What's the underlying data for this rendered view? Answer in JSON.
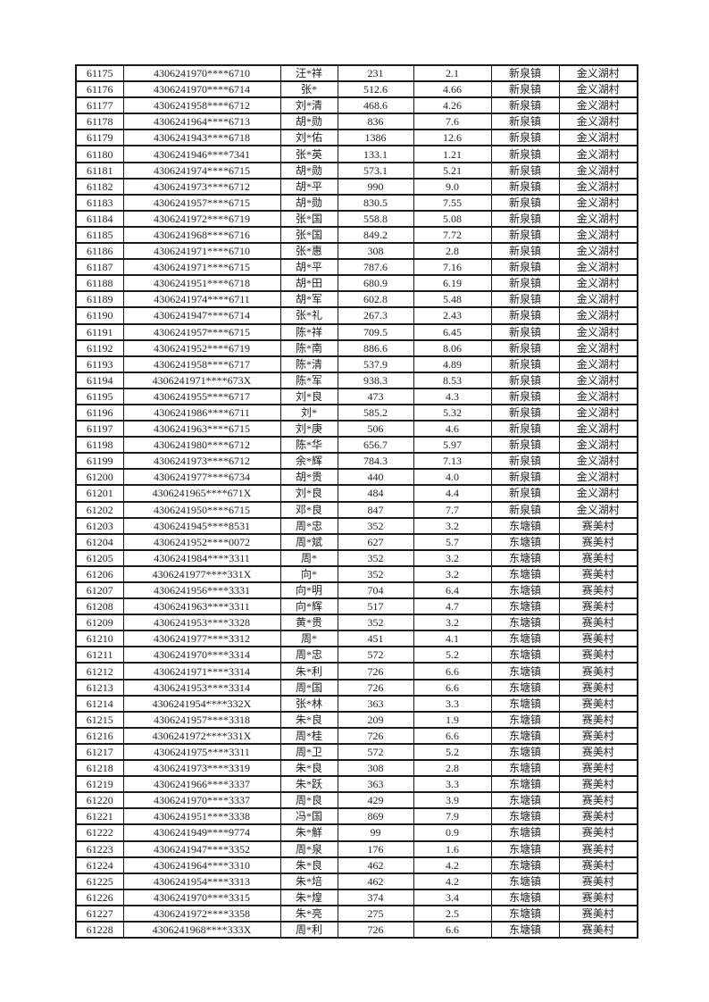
{
  "colors": {
    "page_background": "#ffffff",
    "grid_border": "#1a1a1a",
    "text": "#1f1f1f"
  },
  "table": {
    "rows": [
      [
        "61175",
        "4306241970****6710",
        "汪*祥",
        "231",
        "2.1",
        "新泉镇",
        "金义湖村"
      ],
      [
        "61176",
        "4306241970****6714",
        "张*",
        "512.6",
        "4.66",
        "新泉镇",
        "金义湖村"
      ],
      [
        "61177",
        "4306241958****6712",
        "刘*清",
        "468.6",
        "4.26",
        "新泉镇",
        "金义湖村"
      ],
      [
        "61178",
        "4306241964****6713",
        "胡*勋",
        "836",
        "7.6",
        "新泉镇",
        "金义湖村"
      ],
      [
        "61179",
        "4306241943****6718",
        "刘*佑",
        "1386",
        "12.6",
        "新泉镇",
        "金义湖村"
      ],
      [
        "61180",
        "4306241946****7341",
        "张*英",
        "133.1",
        "1.21",
        "新泉镇",
        "金义湖村"
      ],
      [
        "61181",
        "4306241974****6715",
        "胡*勋",
        "573.1",
        "5.21",
        "新泉镇",
        "金义湖村"
      ],
      [
        "61182",
        "4306241973****6712",
        "胡*平",
        "990",
        "9.0",
        "新泉镇",
        "金义湖村"
      ],
      [
        "61183",
        "4306241957****6715",
        "胡*勋",
        "830.5",
        "7.55",
        "新泉镇",
        "金义湖村"
      ],
      [
        "61184",
        "4306241972****6719",
        "张*国",
        "558.8",
        "5.08",
        "新泉镇",
        "金义湖村"
      ],
      [
        "61185",
        "4306241968****6716",
        "张*国",
        "849.2",
        "7.72",
        "新泉镇",
        "金义湖村"
      ],
      [
        "61186",
        "4306241971****6710",
        "张*惠",
        "308",
        "2.8",
        "新泉镇",
        "金义湖村"
      ],
      [
        "61187",
        "4306241971****6715",
        "胡*平",
        "787.6",
        "7.16",
        "新泉镇",
        "金义湖村"
      ],
      [
        "61188",
        "4306241951****6718",
        "胡*田",
        "680.9",
        "6.19",
        "新泉镇",
        "金义湖村"
      ],
      [
        "61189",
        "4306241974****6711",
        "胡*军",
        "602.8",
        "5.48",
        "新泉镇",
        "金义湖村"
      ],
      [
        "61190",
        "4306241947****6714",
        "张*礼",
        "267.3",
        "2.43",
        "新泉镇",
        "金义湖村"
      ],
      [
        "61191",
        "4306241957****6715",
        "陈*祥",
        "709.5",
        "6.45",
        "新泉镇",
        "金义湖村"
      ],
      [
        "61192",
        "4306241952****6719",
        "陈*南",
        "886.6",
        "8.06",
        "新泉镇",
        "金义湖村"
      ],
      [
        "61193",
        "4306241958****6717",
        "陈*清",
        "537.9",
        "4.89",
        "新泉镇",
        "金义湖村"
      ],
      [
        "61194",
        "4306241971****673X",
        "陈*军",
        "938.3",
        "8.53",
        "新泉镇",
        "金义湖村"
      ],
      [
        "61195",
        "4306241955****6717",
        "刘*良",
        "473",
        "4.3",
        "新泉镇",
        "金义湖村"
      ],
      [
        "61196",
        "4306241986****6711",
        "刘*",
        "585.2",
        "5.32",
        "新泉镇",
        "金义湖村"
      ],
      [
        "61197",
        "4306241963****6715",
        "刘*庚",
        "506",
        "4.6",
        "新泉镇",
        "金义湖村"
      ],
      [
        "61198",
        "4306241980****6712",
        "陈*华",
        "656.7",
        "5.97",
        "新泉镇",
        "金义湖村"
      ],
      [
        "61199",
        "4306241973****6712",
        "余*辉",
        "784.3",
        "7.13",
        "新泉镇",
        "金义湖村"
      ],
      [
        "61200",
        "4306241977****6734",
        "胡*贵",
        "440",
        "4.0",
        "新泉镇",
        "金义湖村"
      ],
      [
        "61201",
        "4306241965****671X",
        "刘*良",
        "484",
        "4.4",
        "新泉镇",
        "金义湖村"
      ],
      [
        "61202",
        "4306241950****6715",
        "邓*良",
        "847",
        "7.7",
        "新泉镇",
        "金义湖村"
      ],
      [
        "61203",
        "4306241945****8531",
        "周*忠",
        "352",
        "3.2",
        "东塘镇",
        "赛美村"
      ],
      [
        "61204",
        "4306241952****0072",
        "周*斌",
        "627",
        "5.7",
        "东塘镇",
        "赛美村"
      ],
      [
        "61205",
        "4306241984****3311",
        "周*",
        "352",
        "3.2",
        "东塘镇",
        "赛美村"
      ],
      [
        "61206",
        "4306241977****331X",
        "向*",
        "352",
        "3.2",
        "东塘镇",
        "赛美村"
      ],
      [
        "61207",
        "4306241956****3331",
        "向*明",
        "704",
        "6.4",
        "东塘镇",
        "赛美村"
      ],
      [
        "61208",
        "4306241963****3311",
        "向*辉",
        "517",
        "4.7",
        "东塘镇",
        "赛美村"
      ],
      [
        "61209",
        "4306241953****3328",
        "黄*贵",
        "352",
        "3.2",
        "东塘镇",
        "赛美村"
      ],
      [
        "61210",
        "4306241977****3312",
        "周*",
        "451",
        "4.1",
        "东塘镇",
        "赛美村"
      ],
      [
        "61211",
        "4306241970****3314",
        "周*忠",
        "572",
        "5.2",
        "东塘镇",
        "赛美村"
      ],
      [
        "61212",
        "4306241971****3314",
        "朱*利",
        "726",
        "6.6",
        "东塘镇",
        "赛美村"
      ],
      [
        "61213",
        "4306241953****3314",
        "周*国",
        "726",
        "6.6",
        "东塘镇",
        "赛美村"
      ],
      [
        "61214",
        "4306241954****332X",
        "张*林",
        "363",
        "3.3",
        "东塘镇",
        "赛美村"
      ],
      [
        "61215",
        "4306241957****3318",
        "朱*良",
        "209",
        "1.9",
        "东塘镇",
        "赛美村"
      ],
      [
        "61216",
        "4306241972****331X",
        "周*桂",
        "726",
        "6.6",
        "东塘镇",
        "赛美村"
      ],
      [
        "61217",
        "4306241975****3311",
        "周*卫",
        "572",
        "5.2",
        "东塘镇",
        "赛美村"
      ],
      [
        "61218",
        "4306241973****3319",
        "朱*良",
        "308",
        "2.8",
        "东塘镇",
        "赛美村"
      ],
      [
        "61219",
        "4306241966****3337",
        "朱*跃",
        "363",
        "3.3",
        "东塘镇",
        "赛美村"
      ],
      [
        "61220",
        "4306241970****3337",
        "周*良",
        "429",
        "3.9",
        "东塘镇",
        "赛美村"
      ],
      [
        "61221",
        "4306241951****3338",
        "冯*国",
        "869",
        "7.9",
        "东塘镇",
        "赛美村"
      ],
      [
        "61222",
        "4306241949****9774",
        "朱*觧",
        "99",
        "0.9",
        "东塘镇",
        "赛美村"
      ],
      [
        "61223",
        "4306241947****3352",
        "周*泉",
        "176",
        "1.6",
        "东塘镇",
        "赛美村"
      ],
      [
        "61224",
        "4306241964****3310",
        "朱*良",
        "462",
        "4.2",
        "东塘镇",
        "赛美村"
      ],
      [
        "61225",
        "4306241954****3313",
        "朱*培",
        "462",
        "4.2",
        "东塘镇",
        "赛美村"
      ],
      [
        "61226",
        "4306241970****3315",
        "朱*煌",
        "374",
        "3.4",
        "东塘镇",
        "赛美村"
      ],
      [
        "61227",
        "4306241972****3358",
        "朱*亮",
        "275",
        "2.5",
        "东塘镇",
        "赛美村"
      ],
      [
        "61228",
        "4306241968****333X",
        "周*利",
        "726",
        "6.6",
        "东塘镇",
        "赛美村"
      ]
    ]
  }
}
